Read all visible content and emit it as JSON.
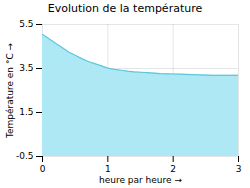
{
  "chart_data": {
    "type": "area",
    "title": "Evolution de la température",
    "xlabel": "heure par heure",
    "ylabel": "Température en °C",
    "x": [
      0,
      0.1,
      0.2,
      0.3,
      0.4,
      0.5,
      0.6,
      0.7,
      0.8,
      0.9,
      1.0,
      1.1,
      1.2,
      1.3,
      1.4,
      1.5,
      1.6,
      1.7,
      1.8,
      1.9,
      2.0,
      2.1,
      2.2,
      2.3,
      2.4,
      2.5,
      2.6,
      2.7,
      2.8,
      2.9,
      3.0
    ],
    "values": [
      5.05,
      4.85,
      4.65,
      4.45,
      4.25,
      4.1,
      3.95,
      3.82,
      3.72,
      3.62,
      3.52,
      3.46,
      3.42,
      3.38,
      3.35,
      3.33,
      3.31,
      3.29,
      3.27,
      3.26,
      3.25,
      3.24,
      3.23,
      3.22,
      3.21,
      3.2,
      3.19,
      3.19,
      3.19,
      3.19,
      3.19
    ],
    "colors": [
      "#aee8f5",
      "#5bc8dc"
    ],
    "xlim": [
      0,
      3
    ],
    "xticks": [
      0,
      1,
      2,
      3
    ],
    "ylim": [
      -0.5,
      5.5
    ],
    "yticks": [
      -0.5,
      1.5,
      3.5,
      5.5
    ],
    "grid": true
  }
}
